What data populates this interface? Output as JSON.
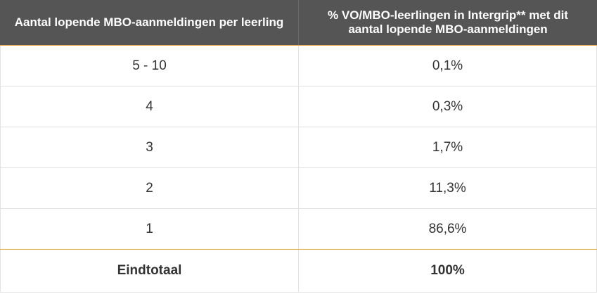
{
  "table": {
    "headers": [
      "Aantal lopende MBO-aanmeldingen per leerling",
      "% VO/MBO-leerlingen in Intergrip** met dit aantal lopende MBO-aanmeldingen"
    ],
    "rows": [
      [
        "5 - 10",
        "0,1%"
      ],
      [
        "4",
        "0,3%"
      ],
      [
        "3",
        "1,7%"
      ],
      [
        "2",
        "11,3%"
      ],
      [
        "1",
        "86,6%"
      ]
    ],
    "total": [
      "Eindtotaal",
      "100%"
    ]
  },
  "colors": {
    "header_bg": "#555555",
    "accent": "#e8a84a",
    "text": "#333333",
    "grid": "#e2e2e2"
  }
}
